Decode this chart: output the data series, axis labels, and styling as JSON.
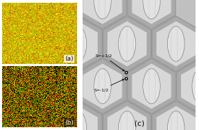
{
  "panel_a": {
    "label": "(a)",
    "seed": 42
  },
  "panel_b": {
    "label": "(b)",
    "seed": 99
  },
  "panel_c": {
    "label": "(c)",
    "hex_outer_color": "#999999",
    "hex_inner_color": "#cccccc",
    "bg_color": "#bbbbbb",
    "oval_fill": "#f0f0f0",
    "oval_edge": "#888888",
    "line_color": "#aaaaaa",
    "annotation_s_plus": "S=+1/2",
    "annotation_s_minus": "S=-1/2"
  }
}
